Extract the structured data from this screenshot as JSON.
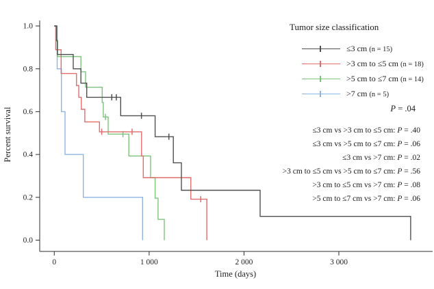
{
  "chart_data": {
    "type": "line",
    "subtype": "kaplan-meier-step",
    "title": "",
    "xlabel": "Time (days)",
    "ylabel": "Percent survival",
    "xlim": [
      0,
      3990
    ],
    "ylim": [
      0,
      1
    ],
    "grid": false,
    "legend_position": "top-right",
    "x_ticks": [
      {
        "t": 0,
        "label": "0"
      },
      {
        "t": 1000,
        "label": "1 000"
      },
      {
        "t": 2000,
        "label": "2 000"
      },
      {
        "t": 3000,
        "label": "3 000"
      }
    ],
    "y_ticks": [
      {
        "s": 1.0,
        "label": "1.0"
      },
      {
        "s": 0.8,
        "label": "0.8"
      },
      {
        "s": 0.6,
        "label": "0.6"
      },
      {
        "s": 0.4,
        "label": "0.4"
      },
      {
        "s": 0.2,
        "label": "0.2"
      },
      {
        "s": 0.0,
        "label": "0.0"
      }
    ],
    "legend": {
      "title": "Tumor size classification",
      "overall_p_italic": "P",
      "overall_p_rest": " = .04"
    },
    "series": [
      {
        "name": "≤3 cm",
        "n_label": "(n = 15)",
        "color": "#4f4f4f",
        "steps": [
          [
            0,
            1.0
          ],
          [
            25,
            0.933
          ],
          [
            32,
            0.867
          ],
          [
            200,
            0.8
          ],
          [
            281,
            0.733
          ],
          [
            342,
            0.667
          ],
          [
            700,
            0.581
          ],
          [
            1063,
            0.483
          ],
          [
            1255,
            0.361
          ],
          [
            1340,
            0.233
          ],
          [
            2170,
            0.111
          ],
          [
            3757,
            0.0
          ]
        ],
        "censors": [
          [
            606,
            0.667
          ],
          [
            654,
            0.667
          ],
          [
            919,
            0.581
          ],
          [
            1208,
            0.483
          ]
        ]
      },
      {
        "name": ">3 cm to ≤5 cm",
        "n_label": "(n = 18)",
        "color": "#e26b6b",
        "steps": [
          [
            0,
            1.0
          ],
          [
            15,
            0.889
          ],
          [
            72,
            0.778
          ],
          [
            234,
            0.722
          ],
          [
            258,
            0.667
          ],
          [
            285,
            0.611
          ],
          [
            322,
            0.552
          ],
          [
            476,
            0.506
          ],
          [
            920,
            0.393
          ],
          [
            938,
            0.292
          ],
          [
            1440,
            0.191
          ],
          [
            1608,
            0.0
          ]
        ],
        "censors": [
          [
            500,
            0.506
          ],
          [
            820,
            0.506
          ],
          [
            1544,
            0.191
          ]
        ]
      },
      {
        "name": ">5 cm to ≤7 cm",
        "n_label": "(n = 14)",
        "color": "#7cc47c",
        "steps": [
          [
            0,
            1.0
          ],
          [
            18,
            0.929
          ],
          [
            35,
            0.857
          ],
          [
            281,
            0.786
          ],
          [
            330,
            0.714
          ],
          [
            505,
            0.643
          ],
          [
            517,
            0.575
          ],
          [
            568,
            0.495
          ],
          [
            786,
            0.393
          ],
          [
            1015,
            0.292
          ],
          [
            1063,
            0.196
          ],
          [
            1094,
            0.097
          ],
          [
            1160,
            0.0
          ]
        ],
        "censors": [
          [
            539,
            0.575
          ],
          [
            724,
            0.495
          ]
        ]
      },
      {
        "name": ">7 cm",
        "n_label": "(n = 5)",
        "color": "#8cb4e4",
        "steps": [
          [
            0,
            1.0
          ],
          [
            30,
            0.8
          ],
          [
            75,
            0.6
          ],
          [
            113,
            0.4
          ],
          [
            306,
            0.2
          ],
          [
            931,
            0.0
          ]
        ],
        "censors": []
      }
    ],
    "comparisons": [
      {
        "label": "≤3 cm vs >3 cm to ≤5 cm",
        "p": ".40"
      },
      {
        "label": "≤3 cm vs >5 cm to ≤7 cm",
        "p": ".06"
      },
      {
        "label": "≤3 cm vs >7 cm",
        "p": ".02"
      },
      {
        "label": ">3 cm to ≤5 cm vs >5 cm to ≤7 cm",
        "p": ".56"
      },
      {
        "label": ">3 cm to ≤5 cm vs >7 cm",
        "p": ".08"
      },
      {
        "label": ">5 cm to ≤7 cm vs >7 cm",
        "p": ".06"
      }
    ]
  }
}
